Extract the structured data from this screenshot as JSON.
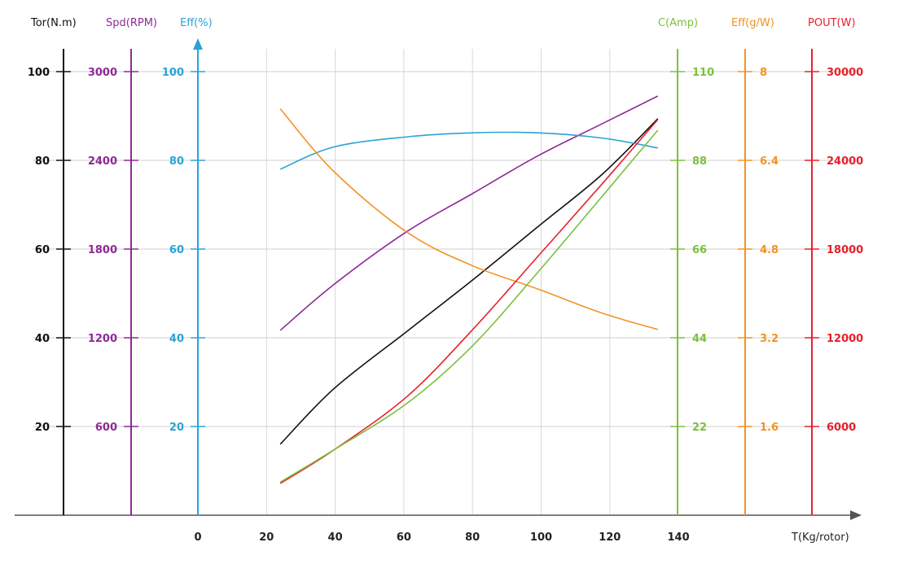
{
  "chart_data": {
    "type": "line",
    "title": "",
    "xlabel": "T(Kg/rotor)",
    "xlim": [
      0,
      140
    ],
    "x_ticks": [
      "0",
      "20",
      "40",
      "60",
      "80",
      "100",
      "120",
      "140"
    ],
    "y_axes": [
      {
        "key": "tor",
        "label": "Tor(N.m)",
        "color": "#111111",
        "max": 100,
        "ticks": [
          "20",
          "40",
          "60",
          "80",
          "100"
        ],
        "side": "left"
      },
      {
        "key": "spd",
        "label": "Spd(RPM)",
        "color": "#8e2a96",
        "max": 3000,
        "ticks": [
          "600",
          "1200",
          "1800",
          "2400",
          "3000"
        ],
        "side": "left"
      },
      {
        "key": "eff",
        "label": "Eff(%)",
        "color": "#2aa3d6",
        "max": 100,
        "ticks": [
          "20",
          "40",
          "60",
          "80",
          "100"
        ],
        "side": "left"
      },
      {
        "key": "amp",
        "label": "C(Amp)",
        "color": "#7cbf3f",
        "max": 110,
        "ticks": [
          "22",
          "44",
          "66",
          "88",
          "110"
        ],
        "side": "right"
      },
      {
        "key": "gw",
        "label": "Eff(g/W)",
        "color": "#f39224",
        "max": 8,
        "ticks": [
          "1.6",
          "3.2",
          "4.8",
          "6.4",
          "8"
        ],
        "side": "right"
      },
      {
        "key": "pout",
        "label": "POUT(W)",
        "color": "#e8202a",
        "max": 30000,
        "ticks": [
          "6000",
          "12000",
          "18000",
          "24000",
          "30000"
        ],
        "side": "right"
      }
    ],
    "x": [
      24,
      39.6,
      61,
      80,
      99,
      118,
      134
    ],
    "series": [
      {
        "name": "Torque",
        "axis": "tor",
        "values": [
          16,
          28.5,
          41.5,
          53,
          65,
          77,
          89.4
        ]
      },
      {
        "name": "Speed",
        "axis": "spd",
        "values": [
          1250,
          1560,
          1920,
          2175,
          2430,
          2650,
          2835
        ]
      },
      {
        "name": "Efficiency %",
        "axis": "eff",
        "values": [
          78,
          83,
          85.3,
          86.2,
          86.2,
          85,
          82.8
        ]
      },
      {
        "name": "Efficiency g/W",
        "axis": "gw",
        "values": [
          7.33,
          6.2,
          5.1,
          4.5,
          4.08,
          3.64,
          3.35
        ]
      },
      {
        "name": "Power",
        "axis": "pout",
        "values": [
          2150,
          4410,
          8040,
          12540,
          17490,
          22470,
          26760
        ]
      },
      {
        "name": "Current",
        "axis": "amp",
        "values": [
          8.2,
          16.2,
          27.8,
          42,
          60.2,
          79.3,
          95.5
        ]
      }
    ],
    "grid": true
  }
}
